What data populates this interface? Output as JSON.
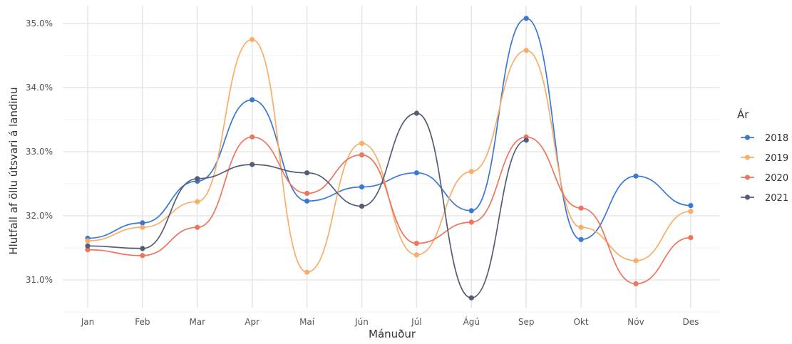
{
  "chart_data": {
    "type": "line",
    "xlabel": "Mánuður",
    "ylabel": "Hlutfall af öllu útsvari á landinu",
    "categories": [
      "Jan",
      "Feb",
      "Mar",
      "Apr",
      "Maí",
      "Jún",
      "Júl",
      "Ágú",
      "Sep",
      "Okt",
      "Nóv",
      "Des"
    ],
    "ylim": [
      30.6,
      35.2
    ],
    "yticks": [
      31.0,
      32.0,
      33.0,
      34.0,
      35.0
    ],
    "ytick_labels": [
      "31.0%",
      "32.0%",
      "33.0%",
      "34.0%",
      "35.0%"
    ],
    "grid": true,
    "legend": {
      "title": "Ár",
      "position": "right"
    },
    "series": [
      {
        "name": "2018",
        "color": "#3a78d6",
        "values": [
          31.65,
          31.89,
          32.54,
          33.81,
          32.23,
          32.45,
          32.67,
          32.08,
          35.08,
          31.63,
          32.62,
          32.16
        ]
      },
      {
        "name": "2019",
        "color": "#f9ad67",
        "values": [
          31.61,
          31.82,
          32.22,
          34.75,
          31.12,
          33.13,
          31.39,
          32.69,
          34.58,
          31.82,
          31.3,
          32.07
        ]
      },
      {
        "name": "2020",
        "color": "#ef745c",
        "values": [
          31.47,
          31.38,
          31.82,
          33.23,
          32.35,
          32.95,
          31.57,
          31.9,
          33.23,
          32.12,
          30.94,
          31.66
        ]
      },
      {
        "name": "2021",
        "color": "#555c76",
        "values": [
          31.53,
          31.49,
          32.58,
          32.8,
          32.67,
          32.15,
          33.6,
          30.72,
          33.18,
          null,
          null,
          null
        ]
      }
    ]
  }
}
